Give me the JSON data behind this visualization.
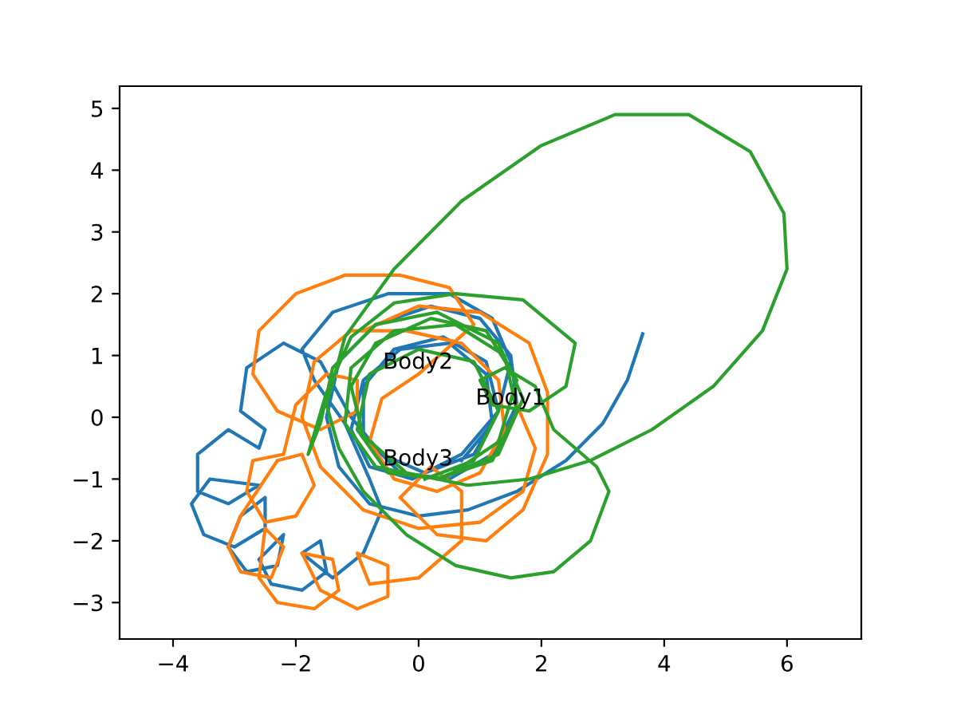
{
  "chart_data": {
    "type": "line",
    "xlim": [
      -4.87,
      7.21
    ],
    "ylim": [
      -3.59,
      5.36
    ],
    "xticks": [
      {
        "value": -4,
        "label": "−4"
      },
      {
        "value": -2,
        "label": "−2"
      },
      0,
      2,
      4,
      6
    ],
    "yticks": [
      {
        "value": -3,
        "label": "−3"
      },
      {
        "value": -2,
        "label": "−2"
      },
      {
        "value": -1,
        "label": "−1"
      },
      0,
      1,
      2,
      3,
      4,
      5
    ],
    "grid": false,
    "annotations": [
      "Body1",
      "Body2",
      "Body3"
    ],
    "series": [
      {
        "color": "#1f77b4",
        "x": [
          3.65,
          3.4,
          3.0,
          2.4,
          1.6,
          0.8,
          0,
          -0.8,
          -1.3,
          -1.5,
          -1.3,
          -0.7,
          0.2,
          1.0,
          1.5,
          1.6,
          1.2,
          0.5,
          -0.3,
          -0.9,
          -0.9,
          -0.4,
          0.4,
          1.1,
          1.3,
          0.9,
          0.1,
          -0.6,
          -1.1,
          -1.6,
          -2.2,
          -2.8,
          -2.9,
          -2.5,
          -2.6,
          -3.1,
          -3.6,
          -3.6,
          -3.1,
          -2.6,
          -3.4,
          -3.7,
          -3.5,
          -3.0,
          -2.5,
          -2.5,
          -2.9,
          -3.1,
          -2.8,
          -2.3,
          -2.2,
          -2.6,
          -2.4,
          -1.9,
          -1.5,
          -1.6,
          -1.9,
          -1.4,
          -0.9,
          -0.6,
          -0.8,
          -1.2,
          -1.7,
          -1.9,
          -1.4,
          -0.5,
          0.5,
          1.2,
          1.5,
          1.3,
          0.7,
          -0.1,
          -0.8,
          -1.1,
          -0.9,
          -0.3,
          0.5,
          1.1,
          1.2,
          0.7
        ],
        "values": [
          1.35,
          0.6,
          -0.1,
          -0.7,
          -1.2,
          -1.5,
          -1.6,
          -1.4,
          -0.8,
          0.0,
          0.9,
          1.5,
          1.8,
          1.6,
          1.0,
          0.2,
          -0.6,
          -1.0,
          -0.9,
          -0.3,
          0.5,
          1.1,
          1.3,
          0.9,
          0.1,
          -0.6,
          -0.9,
          -0.6,
          0.0,
          0.9,
          1.2,
          0.8,
          0.1,
          -0.2,
          -0.5,
          -0.2,
          -0.6,
          -1.2,
          -1.4,
          -1.1,
          -1.0,
          -1.4,
          -1.9,
          -2.1,
          -1.8,
          -1.3,
          -1.6,
          -2.1,
          -2.5,
          -2.4,
          -1.9,
          -2.3,
          -2.7,
          -2.8,
          -2.5,
          -2.0,
          -2.2,
          -2.6,
          -2.2,
          -1.5,
          -1.0,
          -0.1,
          0.6,
          1.1,
          1.7,
          2.0,
          2.0,
          1.6,
          0.9,
          0.1,
          -0.6,
          -1.0,
          -0.8,
          -0.2,
          0.6,
          1.1,
          1.2,
          0.7,
          -0.1,
          -0.7
        ]
      },
      {
        "color": "#ff7f0e",
        "x": [
          1.6,
          1.9,
          1.7,
          1.0,
          0.0,
          -0.9,
          -1.6,
          -1.9,
          -1.7,
          -1.1,
          -0.2,
          0.7,
          1.3,
          1.4,
          1.0,
          0.3,
          -0.4,
          -0.8,
          -0.6,
          0.0,
          0.9,
          0.5,
          -0.3,
          -1.2,
          -2.0,
          -2.6,
          -2.7,
          -2.3,
          -1.6,
          -1.0,
          -1.0,
          -1.5,
          -2.0,
          -2.2,
          -2.7,
          -2.8,
          -2.5,
          -2.0,
          -1.7,
          -1.9,
          -2.3,
          -2.9,
          -3.1,
          -2.9,
          -2.4,
          -2.2,
          -2.5,
          -2.6,
          -2.3,
          -1.7,
          -1.3,
          -1.4,
          -1.9,
          -1.6,
          -1.0,
          -0.5,
          -0.5,
          -1.0,
          -0.8,
          0.0,
          0.7,
          0.7,
          0.2,
          -0.3,
          0.3,
          1.1,
          1.7,
          2.1,
          2.1,
          1.8,
          1.0,
          0.0,
          -0.9
        ],
        "values": [
          0.2,
          -0.5,
          -1.2,
          -1.7,
          -1.8,
          -1.5,
          -0.8,
          0.0,
          0.9,
          1.4,
          1.4,
          1.2,
          0.6,
          -0.2,
          -0.9,
          -1.2,
          -1.0,
          -0.4,
          0.3,
          0.7,
          1.5,
          2.1,
          2.3,
          2.3,
          2.0,
          1.4,
          0.7,
          0.1,
          -0.2,
          0.1,
          0.6,
          0.7,
          0.2,
          -0.6,
          -0.7,
          -1.2,
          -1.7,
          -1.6,
          -1.1,
          -0.6,
          -0.7,
          -1.6,
          -2.1,
          -2.5,
          -2.6,
          -2.1,
          -1.8,
          -2.6,
          -3.0,
          -3.1,
          -2.8,
          -2.3,
          -2.2,
          -2.8,
          -3.1,
          -2.9,
          -2.4,
          -2.2,
          -2.7,
          -2.6,
          -2.0,
          -1.2,
          -0.8,
          -1.3,
          -1.9,
          -2.0,
          -1.5,
          -0.6,
          0.4,
          1.2,
          1.7,
          1.8,
          1.4
        ]
      },
      {
        "color": "#2ca02c",
        "x": [
          0.3,
          1.2,
          1.6,
          1.4,
          0.6,
          -0.4,
          -1.1,
          -1.2,
          -0.7,
          0.3,
          1.3,
          1.7,
          1.3,
          0.3,
          -0.7,
          -1.4,
          -1.6,
          -1.8,
          -1.5,
          -1.1,
          -0.4,
          0.6,
          1.7,
          2.55,
          2.4,
          1.8,
          1.2,
          1.0,
          1.4,
          1.9,
          2.2,
          2.9,
          3.1,
          2.8,
          2.2,
          1.5,
          0.6,
          -0.2,
          -0.9,
          -1.3,
          -1.5,
          -1.2,
          -0.4,
          0.7,
          2.0,
          3.2,
          4.4,
          5.4,
          5.95,
          6.0,
          5.6,
          4.8,
          3.8,
          2.8,
          1.8,
          0.8,
          -0.2,
          -0.9,
          -1.1,
          -0.7,
          0.2,
          1.1,
          1.6,
          1.3,
          0.4,
          -0.5,
          -1.0,
          -0.8,
          0.0,
          0.9,
          1.3,
          0.9,
          0.1
        ],
        "values": [
          -1.0,
          -0.7,
          0.1,
          1.0,
          1.5,
          1.4,
          0.8,
          -0.1,
          -0.8,
          -1.0,
          -0.6,
          0.3,
          1.2,
          1.7,
          1.5,
          0.8,
          -0.1,
          -0.6,
          0.4,
          1.3,
          1.85,
          2.0,
          1.9,
          1.2,
          0.5,
          0.1,
          0.2,
          0.6,
          0.8,
          0.5,
          -0.2,
          -0.8,
          -1.2,
          -2.0,
          -2.5,
          -2.6,
          -2.4,
          -1.9,
          -1.2,
          -0.5,
          0.2,
          1.3,
          2.4,
          3.5,
          4.4,
          4.9,
          4.9,
          4.3,
          3.3,
          2.4,
          1.4,
          0.5,
          -0.2,
          -0.7,
          -1.0,
          -1.1,
          -0.9,
          -0.3,
          0.5,
          1.2,
          1.6,
          1.4,
          0.6,
          -0.4,
          -1.0,
          -0.9,
          -0.2,
          0.7,
          1.1,
          0.9,
          0.1,
          -0.7,
          -1.0
        ]
      }
    ]
  }
}
